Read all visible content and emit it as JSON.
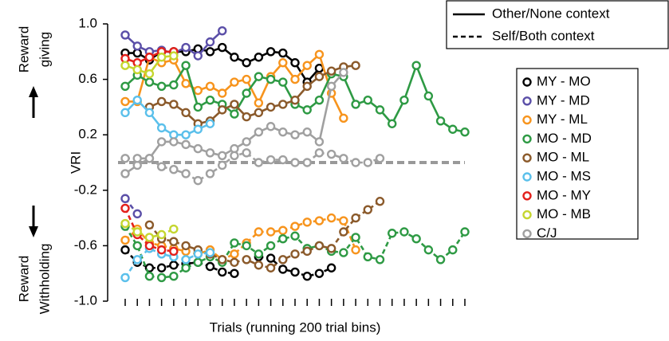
{
  "chart_data": {
    "type": "line",
    "x_label": "Trials (running 200 trial bins)",
    "y_label": "VRI",
    "y_annotations": {
      "top": [
        "Reward",
        "giving"
      ],
      "bottom": [
        "Reward",
        "Withholding"
      ]
    },
    "linestyles": [
      {
        "label": "Other/None context",
        "dashed": false
      },
      {
        "label": "Self/Both context",
        "dashed": true
      }
    ],
    "reference_line": {
      "value": 0,
      "color": "#999999"
    },
    "ylim": [
      -1,
      1
    ],
    "yticks": [
      {
        "value": 1,
        "label": "1.0"
      },
      0.6,
      0.2,
      -0.2,
      -0.6,
      {
        "value": -1,
        "label": "-1.0"
      }
    ],
    "grid": false,
    "legend": "right",
    "categories": [
      null,
      null,
      null,
      null,
      null,
      null,
      null,
      null,
      null,
      null,
      null,
      null,
      null,
      null,
      null,
      null,
      null,
      null,
      null,
      null,
      null,
      null,
      null,
      null,
      null,
      null,
      null,
      null,
      null
    ],
    "series": [
      {
        "name": "MY - MO",
        "color": "#000000",
        "other": [
          0.79,
          0.79,
          0.74,
          0.8,
          0.8,
          0.8,
          0.82,
          0.8,
          0.83,
          0.76,
          0.72,
          0.76,
          0.8,
          0.79,
          0.72,
          0.58,
          0.68
        ],
        "self": [
          -0.63,
          -0.72,
          -0.76,
          -0.76,
          -0.74,
          -0.73,
          -0.72,
          -0.75,
          -0.79,
          -0.8,
          null,
          -0.68,
          -0.69,
          -0.77,
          -0.79,
          -0.82,
          -0.8,
          -0.76
        ]
      },
      {
        "name": "MY - MD",
        "color": "#5b4fa8",
        "other": [
          0.92,
          0.84,
          0.8,
          0.81,
          0.79,
          0.83,
          0.77,
          0.87,
          0.95
        ],
        "self": [
          -0.26,
          -0.37
        ]
      },
      {
        "name": "MY - ML",
        "color": "#f7941d",
        "other": [
          0.44,
          0.44,
          0.76,
          0.72,
          0.74,
          0.57,
          0.52,
          0.55,
          0.5,
          0.58,
          0.6,
          0.43,
          0.62,
          0.72,
          0.6,
          0.7,
          0.78,
          0.5,
          0.32
        ],
        "self": [
          -0.56,
          -0.48,
          -0.58,
          -0.6,
          -0.62,
          -0.64,
          -0.66,
          -0.63,
          -0.7,
          -0.66,
          -0.58,
          -0.5,
          -0.5,
          -0.49,
          -0.46,
          -0.43,
          -0.42,
          -0.4,
          -0.42,
          -0.63
        ]
      },
      {
        "name": "MO - MD",
        "color": "#2e9a44",
        "other": [
          0.55,
          0.63,
          0.58,
          0.55,
          0.56,
          0.7,
          0.4,
          0.45,
          0.42,
          0.35,
          0.5,
          0.62,
          0.6,
          0.58,
          0.42,
          0.38,
          0.45,
          0.64,
          0.62,
          0.42,
          0.45,
          0.38,
          0.28,
          0.45,
          0.7,
          0.48,
          0.3,
          0.24,
          0.22
        ],
        "self": [
          -0.46,
          -0.6,
          -0.82,
          -0.83,
          -0.82,
          -0.76,
          -0.72,
          -0.68,
          -0.72,
          -0.58,
          -0.6,
          -0.66,
          -0.6,
          -0.55,
          -0.53,
          -0.62,
          -0.6,
          -0.64,
          -0.65,
          -0.54,
          -0.68,
          -0.7,
          -0.51,
          -0.5,
          -0.55,
          -0.63,
          -0.7,
          -0.63,
          -0.5
        ]
      },
      {
        "name": "MO - ML",
        "color": "#8b5a2b",
        "other": [
          null,
          null,
          0.4,
          0.44,
          0.42,
          0.36,
          0.28,
          0.3,
          0.38,
          0.42,
          0.33,
          0.36,
          0.4,
          0.42,
          0.45,
          0.55,
          0.62,
          0.66,
          0.69,
          0.7
        ],
        "self": [
          null,
          null,
          -0.45,
          -0.55,
          -0.57,
          -0.6,
          -0.63,
          -0.66,
          -0.7,
          -0.72,
          -0.7,
          -0.74,
          -0.76,
          -0.7,
          -0.66,
          -0.64,
          -0.6,
          -0.62,
          -0.5,
          -0.4,
          -0.34,
          -0.28
        ]
      },
      {
        "name": "MO - MS",
        "color": "#5bc0eb",
        "other": [
          0.36,
          0.45,
          0.36,
          0.25,
          0.2,
          0.2,
          0.24,
          0.28
        ],
        "self": [
          -0.83,
          -0.7,
          -0.62,
          -0.66,
          -0.68,
          -0.7,
          -0.66,
          -0.65
        ]
      },
      {
        "name": "MO - MY",
        "color": "#e3201b",
        "other": [
          0.75,
          0.72,
          0.76,
          0.8,
          0.8
        ],
        "self": [
          -0.33,
          -0.52,
          -0.6,
          -0.63,
          -0.64
        ]
      },
      {
        "name": "MO - MB",
        "color": "#c5d62f",
        "other": [
          0.7,
          0.67,
          0.64,
          0.76,
          0.77
        ],
        "self": [
          -0.44,
          -0.5,
          -0.54,
          -0.52,
          -0.48
        ]
      },
      {
        "name": "C/J",
        "color": "#a0a0a0",
        "other": [
          -0.08,
          -0.02,
          0.03,
          0.15,
          0.15,
          0.13,
          0.1,
          0.07,
          0.05,
          0.1,
          0.15,
          0.22,
          0.26,
          0.22,
          0.2,
          0.22,
          0.15,
          0.55,
          0.65
        ],
        "self": [
          0.03,
          0.03,
          0.03,
          -0.03,
          -0.05,
          -0.08,
          -0.13,
          -0.08,
          -0.02,
          0.05,
          0.07,
          0.0,
          0.02,
          0.02,
          0.0,
          0.0,
          0.07,
          0.06,
          0.03,
          0.0,
          0.0,
          0.03
        ]
      }
    ]
  }
}
